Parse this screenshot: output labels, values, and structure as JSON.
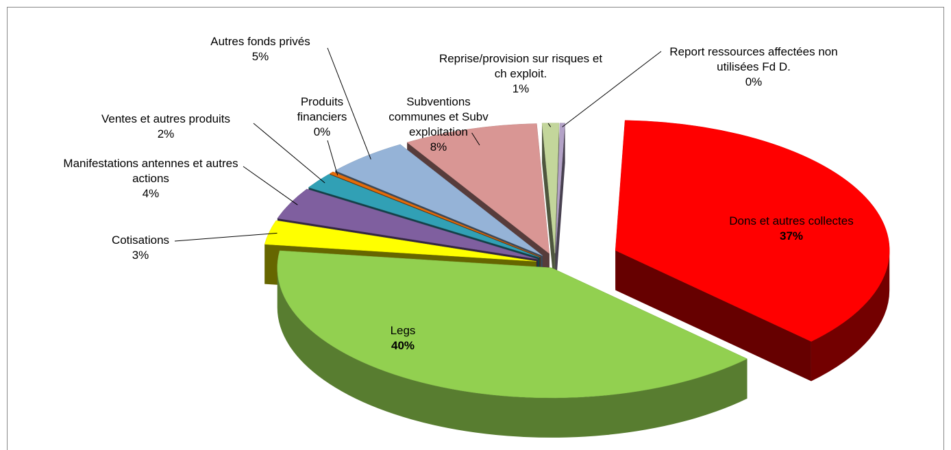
{
  "chart_data": {
    "type": "pie",
    "categories": [
      "Dons et autres collectes",
      "Legs",
      "Cotisations",
      "Manifestations antennes et autres actions",
      "Ventes et autres produits",
      "Produits financiers",
      "Autres fonds privés",
      "Subventions communes et Subv exploitation",
      "Reprise/provision sur risques et ch exploit.",
      "Report ressources affectées non utilisées Fd D."
    ],
    "values": [
      37,
      40,
      3,
      4,
      2,
      0.3,
      5,
      8,
      1,
      0.3
    ],
    "value_labels": [
      "37%",
      "40%",
      "3%",
      "4%",
      "2%",
      "0%",
      "5%",
      "8%",
      "1%",
      "0%"
    ],
    "colors": [
      "#ff0000",
      "#92d050",
      "#ffff00",
      "#7f5f9f",
      "#31a0b5",
      "#e46c0a",
      "#95b3d7",
      "#d99694",
      "#c3d69b",
      "#b3a2c7"
    ]
  }
}
